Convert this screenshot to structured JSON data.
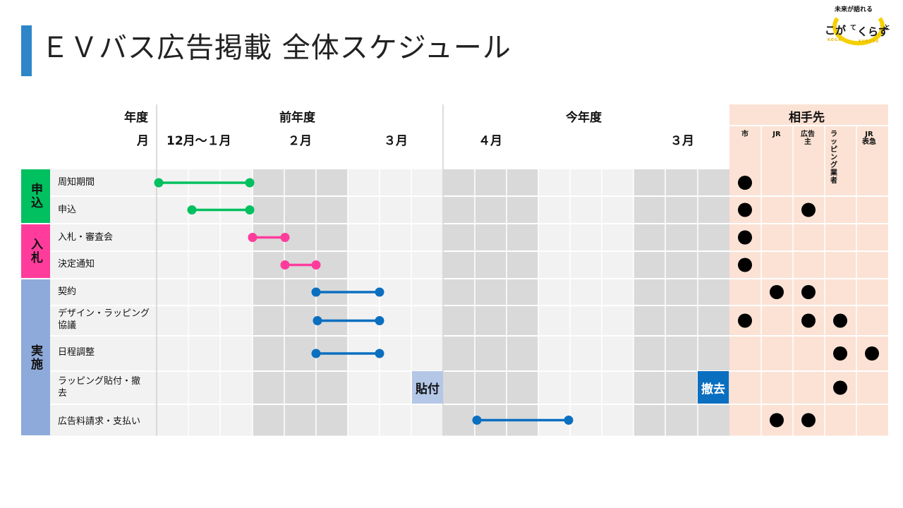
{
  "title": "ＥＶバス広告掲載 全体スケジュール",
  "logo": {
    "tagline": "未来が語れる",
    "word1": "こが",
    "word2": "くらす",
    "small_te": "て",
    "small_to": "と",
    "sub1": "KOGA",
    "sub2": "KURASU"
  },
  "header": {
    "nendo_label": "年度",
    "month_label": "月",
    "prev_year": "前年度",
    "this_year": "今年度",
    "partners": "相手先",
    "months": [
      "12月～１月",
      "２月",
      "３月",
      "４月",
      "３月"
    ],
    "partner_cols": [
      "市",
      "JR",
      "広告主",
      "ラッピング業者",
      "JR 表急"
    ]
  },
  "categories": [
    "申込",
    "入札",
    "実施"
  ],
  "rows": [
    {
      "label": "周知期間",
      "partners": [
        true,
        false,
        false,
        false,
        false
      ]
    },
    {
      "label": "申込",
      "partners": [
        true,
        false,
        true,
        false,
        false
      ]
    },
    {
      "label": "入札・審査会",
      "partners": [
        true,
        false,
        false,
        false,
        false
      ]
    },
    {
      "label": "決定通知",
      "partners": [
        true,
        false,
        false,
        false,
        false
      ]
    },
    {
      "label": "契約",
      "partners": [
        false,
        true,
        true,
        false,
        false
      ]
    },
    {
      "label": "デザイン・ラッピング協議",
      "partners": [
        true,
        false,
        true,
        true,
        false
      ]
    },
    {
      "label": "日程調整",
      "partners": [
        false,
        false,
        false,
        true,
        true
      ]
    },
    {
      "label": "ラッピング貼付・撤去",
      "partners": [
        false,
        false,
        false,
        true,
        false
      ]
    },
    {
      "label": "広告料請求・支払い",
      "partners": [
        false,
        true,
        true,
        false,
        false
      ]
    }
  ],
  "boxes": {
    "attach": "貼付",
    "remove": "撤去"
  },
  "colors": {
    "green": "#00c060",
    "pink": "#ff3c9c",
    "blue": "#0b6fc0",
    "cat1": "#00c060",
    "cat2": "#ff3c9c",
    "cat3": "#8eaadb",
    "partner_bg": "#fbe2d4",
    "gray_shade": "#d9d9d9",
    "light": "#f2f2f2"
  }
}
